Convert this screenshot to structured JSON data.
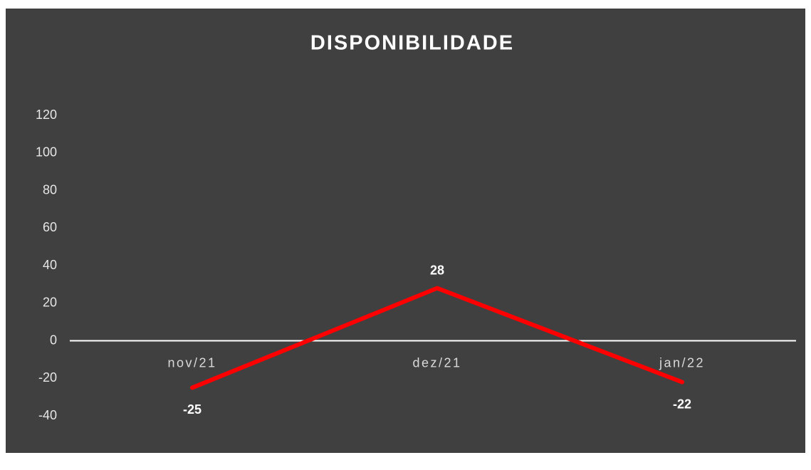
{
  "chart_data": {
    "type": "line",
    "title": "DISPONIBILIDADE",
    "categories": [
      "nov/21",
      "dez/21",
      "jan/22"
    ],
    "series": [
      {
        "name": "Disponibilidade",
        "color": "#ff0000",
        "values": [
          -25,
          28,
          -22
        ]
      }
    ],
    "ylim": [
      -40,
      120
    ],
    "yticks": [
      -40,
      -20,
      0,
      20,
      40,
      60,
      80,
      100,
      120
    ],
    "grid": false,
    "legend": false,
    "data_labels": true
  }
}
